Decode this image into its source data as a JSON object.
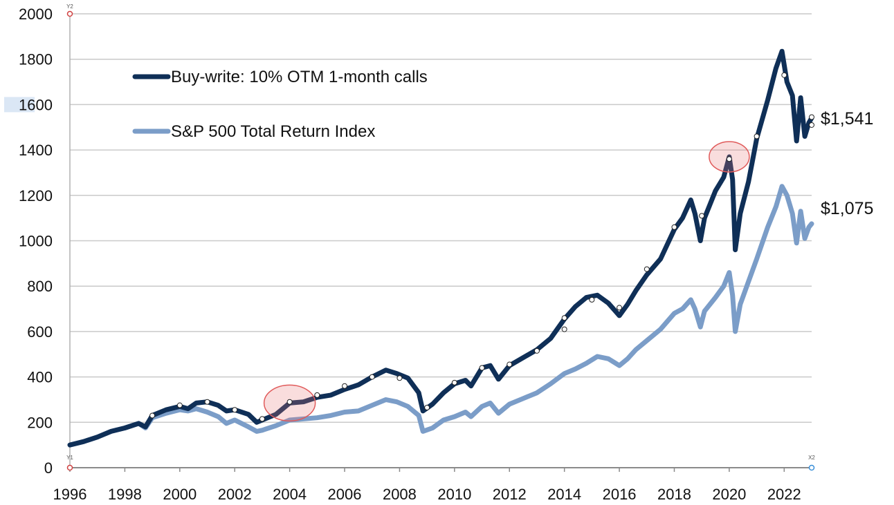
{
  "chart_data": {
    "type": "line",
    "title": "",
    "xlabel": "",
    "ylabel": "",
    "xlim": [
      1996,
      2023
    ],
    "ylim": [
      0,
      2000
    ],
    "grid": "horizontal",
    "legend_position": "top-left",
    "x_ticks": [
      "1996",
      "1998",
      "2000",
      "2002",
      "2004",
      "2006",
      "2008",
      "2010",
      "2012",
      "2014",
      "2016",
      "2018",
      "2020",
      "2022"
    ],
    "y_ticks": [
      "0",
      "200",
      "400",
      "600",
      "800",
      "1000",
      "1200",
      "1400",
      "1600",
      "1800",
      "2000"
    ],
    "highlighted_y_tick": "1600",
    "corner_markers": {
      "y2": "Y2",
      "y1": "Y1",
      "x2": "X2"
    },
    "series": [
      {
        "name": "Buy-write: 10% OTM 1-month calls",
        "color": "#0f2f57",
        "end_label": "$1,541",
        "points": [
          [
            1996.0,
            100
          ],
          [
            1996.5,
            115
          ],
          [
            1997.0,
            135
          ],
          [
            1997.5,
            160
          ],
          [
            1998.0,
            175
          ],
          [
            1998.5,
            195
          ],
          [
            1998.75,
            180
          ],
          [
            1999.0,
            230
          ],
          [
            1999.5,
            255
          ],
          [
            2000.0,
            270
          ],
          [
            2000.3,
            260
          ],
          [
            2000.6,
            285
          ],
          [
            2001.0,
            290
          ],
          [
            2001.4,
            275
          ],
          [
            2001.7,
            250
          ],
          [
            2002.0,
            255
          ],
          [
            2002.5,
            235
          ],
          [
            2002.8,
            200
          ],
          [
            2003.0,
            210
          ],
          [
            2003.5,
            235
          ],
          [
            2004.0,
            285
          ],
          [
            2004.5,
            290
          ],
          [
            2005.0,
            310
          ],
          [
            2005.5,
            320
          ],
          [
            2006.0,
            345
          ],
          [
            2006.5,
            365
          ],
          [
            2007.0,
            400
          ],
          [
            2007.5,
            430
          ],
          [
            2007.9,
            415
          ],
          [
            2008.3,
            395
          ],
          [
            2008.7,
            330
          ],
          [
            2008.85,
            250
          ],
          [
            2009.2,
            280
          ],
          [
            2009.6,
            330
          ],
          [
            2010.0,
            370
          ],
          [
            2010.4,
            385
          ],
          [
            2010.6,
            360
          ],
          [
            2011.0,
            440
          ],
          [
            2011.3,
            450
          ],
          [
            2011.6,
            390
          ],
          [
            2012.0,
            450
          ],
          [
            2012.5,
            485
          ],
          [
            2013.0,
            520
          ],
          [
            2013.5,
            570
          ],
          [
            2014.0,
            655
          ],
          [
            2014.4,
            710
          ],
          [
            2014.8,
            750
          ],
          [
            2015.2,
            760
          ],
          [
            2015.6,
            725
          ],
          [
            2016.0,
            670
          ],
          [
            2016.3,
            720
          ],
          [
            2016.6,
            780
          ],
          [
            2017.0,
            850
          ],
          [
            2017.5,
            920
          ],
          [
            2018.0,
            1050
          ],
          [
            2018.3,
            1100
          ],
          [
            2018.6,
            1180
          ],
          [
            2018.75,
            1120
          ],
          [
            2018.95,
            1000
          ],
          [
            2019.1,
            1100
          ],
          [
            2019.5,
            1220
          ],
          [
            2019.8,
            1280
          ],
          [
            2020.0,
            1370
          ],
          [
            2020.12,
            1270
          ],
          [
            2020.22,
            960
          ],
          [
            2020.4,
            1120
          ],
          [
            2020.7,
            1260
          ],
          [
            2021.0,
            1450
          ],
          [
            2021.4,
            1620
          ],
          [
            2021.7,
            1760
          ],
          [
            2021.92,
            1835
          ],
          [
            2022.1,
            1700
          ],
          [
            2022.3,
            1640
          ],
          [
            2022.45,
            1440
          ],
          [
            2022.6,
            1630
          ],
          [
            2022.75,
            1460
          ],
          [
            2022.9,
            1520
          ],
          [
            2023.0,
            1541
          ]
        ]
      },
      {
        "name": "S&P 500 Total Return Index",
        "color": "#7b9dc8",
        "end_label": "$1,075",
        "points": [
          [
            1996.0,
            100
          ],
          [
            1996.5,
            115
          ],
          [
            1997.0,
            135
          ],
          [
            1997.5,
            160
          ],
          [
            1998.0,
            175
          ],
          [
            1998.5,
            195
          ],
          [
            1998.75,
            175
          ],
          [
            1999.0,
            220
          ],
          [
            1999.5,
            240
          ],
          [
            2000.0,
            255
          ],
          [
            2000.3,
            250
          ],
          [
            2000.6,
            260
          ],
          [
            2001.0,
            245
          ],
          [
            2001.4,
            225
          ],
          [
            2001.7,
            195
          ],
          [
            2002.0,
            210
          ],
          [
            2002.5,
            180
          ],
          [
            2002.8,
            160
          ],
          [
            2003.0,
            165
          ],
          [
            2003.5,
            185
          ],
          [
            2004.0,
            210
          ],
          [
            2004.5,
            215
          ],
          [
            2005.0,
            220
          ],
          [
            2005.5,
            230
          ],
          [
            2006.0,
            245
          ],
          [
            2006.5,
            250
          ],
          [
            2007.0,
            275
          ],
          [
            2007.5,
            300
          ],
          [
            2007.9,
            290
          ],
          [
            2008.3,
            270
          ],
          [
            2008.7,
            230
          ],
          [
            2008.85,
            160
          ],
          [
            2009.2,
            175
          ],
          [
            2009.6,
            210
          ],
          [
            2010.0,
            225
          ],
          [
            2010.4,
            245
          ],
          [
            2010.6,
            225
          ],
          [
            2011.0,
            270
          ],
          [
            2011.3,
            285
          ],
          [
            2011.6,
            240
          ],
          [
            2012.0,
            280
          ],
          [
            2012.5,
            305
          ],
          [
            2013.0,
            330
          ],
          [
            2013.5,
            370
          ],
          [
            2014.0,
            415
          ],
          [
            2014.4,
            435
          ],
          [
            2014.8,
            460
          ],
          [
            2015.2,
            490
          ],
          [
            2015.6,
            480
          ],
          [
            2016.0,
            450
          ],
          [
            2016.3,
            480
          ],
          [
            2016.6,
            520
          ],
          [
            2017.0,
            560
          ],
          [
            2017.5,
            610
          ],
          [
            2018.0,
            680
          ],
          [
            2018.3,
            700
          ],
          [
            2018.6,
            740
          ],
          [
            2018.75,
            700
          ],
          [
            2018.95,
            620
          ],
          [
            2019.1,
            690
          ],
          [
            2019.5,
            750
          ],
          [
            2019.8,
            800
          ],
          [
            2020.0,
            860
          ],
          [
            2020.12,
            760
          ],
          [
            2020.22,
            600
          ],
          [
            2020.4,
            720
          ],
          [
            2020.7,
            820
          ],
          [
            2021.0,
            920
          ],
          [
            2021.4,
            1060
          ],
          [
            2021.7,
            1150
          ],
          [
            2021.92,
            1240
          ],
          [
            2022.1,
            1200
          ],
          [
            2022.3,
            1120
          ],
          [
            2022.45,
            990
          ],
          [
            2022.6,
            1130
          ],
          [
            2022.75,
            1010
          ],
          [
            2022.9,
            1060
          ],
          [
            2023.0,
            1075
          ]
        ]
      }
    ],
    "highlight_circles": [
      {
        "x": 2004.0,
        "y": 285
      },
      {
        "x": 2020.0,
        "y": 1370
      }
    ],
    "dot_markers": [
      [
        1999.0,
        230
      ],
      [
        2000.0,
        275
      ],
      [
        2001.0,
        290
      ],
      [
        2002.0,
        255
      ],
      [
        2003.0,
        215
      ],
      [
        2004.0,
        290
      ],
      [
        2005.0,
        320
      ],
      [
        2006.0,
        360
      ],
      [
        2007.0,
        400
      ],
      [
        2008.0,
        395
      ],
      [
        2009.0,
        265
      ],
      [
        2010.0,
        375
      ],
      [
        2011.0,
        440
      ],
      [
        2012.0,
        455
      ],
      [
        2013.0,
        515
      ],
      [
        2014.0,
        660
      ],
      [
        2014.0,
        610
      ],
      [
        2015.0,
        740
      ],
      [
        2016.0,
        705
      ],
      [
        2017.0,
        875
      ],
      [
        2018.0,
        1060
      ],
      [
        2019.0,
        1110
      ],
      [
        2020.0,
        1360
      ],
      [
        2021.0,
        1460
      ],
      [
        2022.0,
        1730
      ],
      [
        2023.0,
        1545
      ],
      [
        2023.0,
        1510
      ]
    ]
  }
}
